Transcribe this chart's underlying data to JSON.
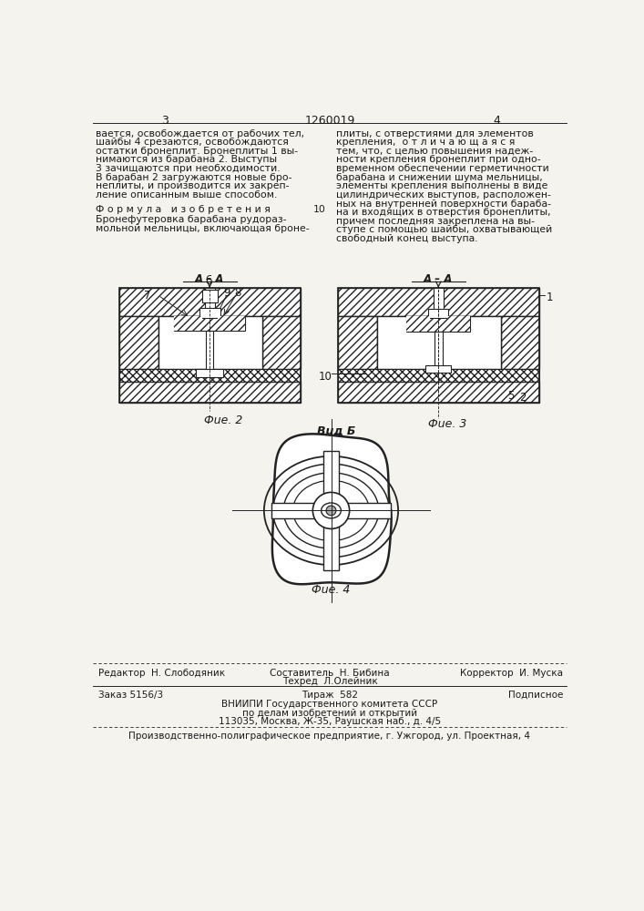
{
  "bg_color": "#f5f3ee",
  "page_color": "#f5f3ee",
  "text_color": "#1a1a1a",
  "title_num": "1260019",
  "page_left": "3",
  "page_right": "4",
  "col_left_text": [
    "вается, освобождается от рабочих тел,",
    "шайбы 4 срезаются, освобождаются",
    "остатки бронеплит. Бронеплиты 1 вы-",
    "нимаются из барабана 2. Выступы",
    "3 зачищаются при необходимости.",
    "В барабан 2 загружаются новые бро-",
    "неплиты, и производится их закреп-",
    "ление описанным выше способом."
  ],
  "formula_text": "Ф о р м у л а   и з о б р е т е н и я",
  "col_left_formula": [
    "Бронефутеровка барабана рудораз-",
    "мольной мельницы, включающая броне-"
  ],
  "col_right_text": [
    "плиты, с отверстиями для элементов",
    "крепления,  о т л и ч а ю щ а я с я",
    "тем, что, с целью повышения надеж-",
    "ности крепления бронеплит при одно-",
    "временном обеспечении герметичности",
    "барабана и снижении шума мельницы,",
    "элементы крепления выполнены в виде",
    "цилиндрических выступов, расположен-",
    "ных на внутренней поверхности бараба-",
    "на и входящих в отверстия бронеплиты,",
    "причем последняя закреплена на вы-",
    "ступе с помощью шайбы, охватывающей",
    "свободный конец выступа."
  ],
  "fig2_label": "Фuе. 2",
  "fig3_label": "Фuе. 3",
  "fig4_label": "Фuе. 4",
  "vid_b_label": "Вuд Б",
  "aa_label": "А – А",
  "editor_label": "Редактор",
  "editor_name": "Н. Слободяник",
  "compiler_label": "Составитель",
  "compiler_name": "Н. Бибина",
  "techred_label": "Техред",
  "techred_name": "Л.Олейник",
  "corrector_label": "Корректор",
  "corrector_name": "И. Муска",
  "order_line": "Заказ 5156/3",
  "tirazh_line": "Тираж  582",
  "podpisnoe_line": "Подписное",
  "vniip_line1": "ВНИИПИ Государственного комитета СССР",
  "vniip_line2": "по делам изобретений и открытий",
  "vniip_line3": "113035, Москва, Ж-35, Раушская наб., д. 4/5",
  "printer_line": "Производственно-полиграфическое предприятие, г. Ужгород, ул. Проектная, 4",
  "line_color": "#222222",
  "hatch_color": "#333333"
}
